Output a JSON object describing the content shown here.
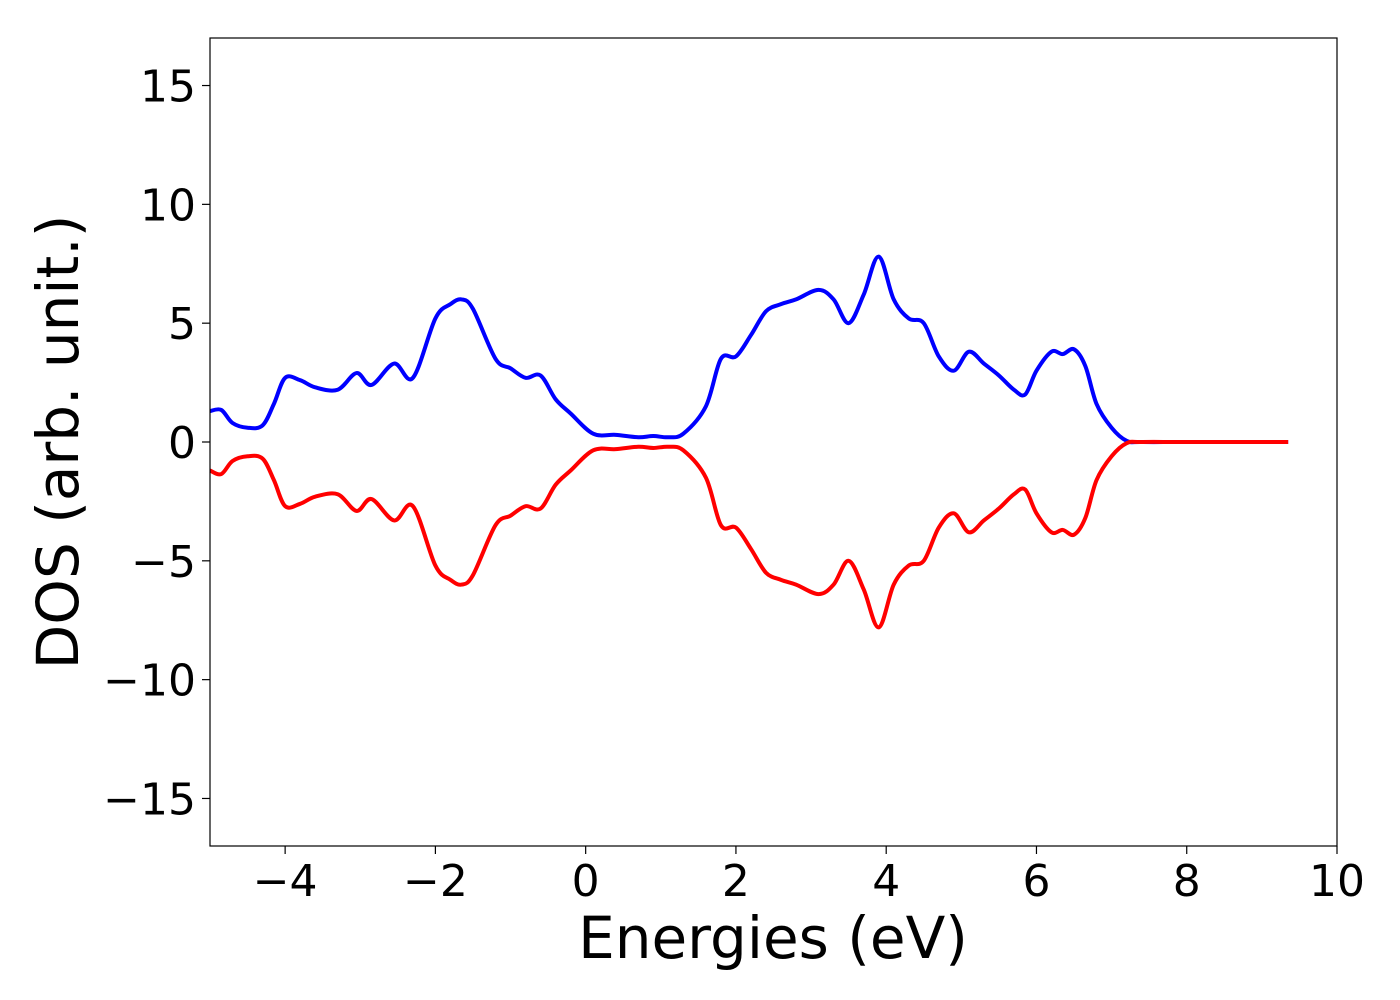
{
  "chart_data": {
    "type": "line",
    "title": "",
    "xlabel": "Energies (eV)",
    "ylabel": "DOS (arb. unit.)",
    "xlim": [
      -5,
      10
    ],
    "ylim": [
      -17,
      17
    ],
    "xticks": [
      -4,
      -2,
      0,
      2,
      4,
      6,
      8,
      10
    ],
    "xtick_labels": [
      "−4",
      "−2",
      "0",
      "2",
      "4",
      "6",
      "8",
      "10"
    ],
    "yticks": [
      15,
      10,
      5,
      0,
      -5,
      -10,
      -15
    ],
    "ytick_labels": [
      "15",
      "10",
      "5",
      "0",
      "−5",
      "−10",
      "−15"
    ],
    "grid": false,
    "legend": "none",
    "series": [
      {
        "color": "#0000ff",
        "x": [
          -5.0,
          -4.85,
          -4.7,
          -4.5,
          -4.3,
          -4.15,
          -4.0,
          -3.8,
          -3.6,
          -3.3,
          -3.05,
          -2.85,
          -2.55,
          -2.3,
          -2.0,
          -1.8,
          -1.65,
          -1.5,
          -1.2,
          -1.0,
          -0.8,
          -0.6,
          -0.4,
          -0.2,
          0.1,
          0.4,
          0.7,
          0.9,
          1.1,
          1.3,
          1.6,
          1.8,
          2.0,
          2.2,
          2.4,
          2.6,
          2.8,
          3.1,
          3.3,
          3.5,
          3.7,
          3.9,
          4.1,
          4.3,
          4.5,
          4.7,
          4.9,
          5.1,
          5.3,
          5.5,
          5.7,
          5.85,
          6.0,
          6.2,
          6.35,
          6.5,
          6.65,
          6.8,
          7.0,
          7.2,
          7.4,
          8.0,
          9.35
        ],
        "y": [
          1.3,
          1.35,
          0.8,
          0.6,
          0.7,
          1.6,
          2.7,
          2.6,
          2.3,
          2.2,
          2.9,
          2.4,
          3.3,
          2.7,
          5.2,
          5.8,
          6.0,
          5.6,
          3.5,
          3.1,
          2.7,
          2.8,
          1.8,
          1.2,
          0.35,
          0.3,
          0.2,
          0.25,
          0.2,
          0.35,
          1.5,
          3.5,
          3.6,
          4.5,
          5.5,
          5.8,
          6.0,
          6.4,
          6.0,
          5.0,
          6.2,
          7.8,
          6.0,
          5.2,
          5.0,
          3.6,
          3.0,
          3.8,
          3.3,
          2.8,
          2.2,
          2.0,
          3.0,
          3.8,
          3.7,
          3.9,
          3.2,
          1.6,
          0.6,
          0.05,
          0.0,
          0.0,
          0.0
        ]
      },
      {
        "color": "#ff0000",
        "x": [
          -5.0,
          -4.85,
          -4.7,
          -4.5,
          -4.3,
          -4.15,
          -4.0,
          -3.8,
          -3.6,
          -3.3,
          -3.05,
          -2.85,
          -2.55,
          -2.3,
          -2.0,
          -1.8,
          -1.65,
          -1.5,
          -1.2,
          -1.0,
          -0.8,
          -0.6,
          -0.4,
          -0.2,
          0.1,
          0.4,
          0.7,
          0.9,
          1.1,
          1.3,
          1.6,
          1.8,
          2.0,
          2.2,
          2.4,
          2.6,
          2.8,
          3.1,
          3.3,
          3.5,
          3.7,
          3.9,
          4.1,
          4.3,
          4.5,
          4.7,
          4.9,
          5.1,
          5.3,
          5.5,
          5.7,
          5.85,
          6.0,
          6.2,
          6.35,
          6.5,
          6.65,
          6.8,
          7.0,
          7.2,
          7.4,
          8.0,
          9.35
        ],
        "y": [
          -1.2,
          -1.35,
          -0.8,
          -0.6,
          -0.7,
          -1.6,
          -2.7,
          -2.6,
          -2.3,
          -2.2,
          -2.9,
          -2.4,
          -3.3,
          -2.7,
          -5.2,
          -5.8,
          -6.0,
          -5.6,
          -3.5,
          -3.1,
          -2.7,
          -2.8,
          -1.8,
          -1.2,
          -0.35,
          -0.3,
          -0.2,
          -0.25,
          -0.2,
          -0.35,
          -1.5,
          -3.5,
          -3.6,
          -4.5,
          -5.5,
          -5.8,
          -6.0,
          -6.4,
          -6.0,
          -5.0,
          -6.2,
          -7.8,
          -6.0,
          -5.2,
          -5.0,
          -3.6,
          -3.0,
          -3.8,
          -3.3,
          -2.8,
          -2.2,
          -2.0,
          -3.0,
          -3.8,
          -3.7,
          -3.9,
          -3.2,
          -1.6,
          -0.6,
          -0.05,
          0.0,
          0.0,
          0.0
        ]
      }
    ]
  }
}
